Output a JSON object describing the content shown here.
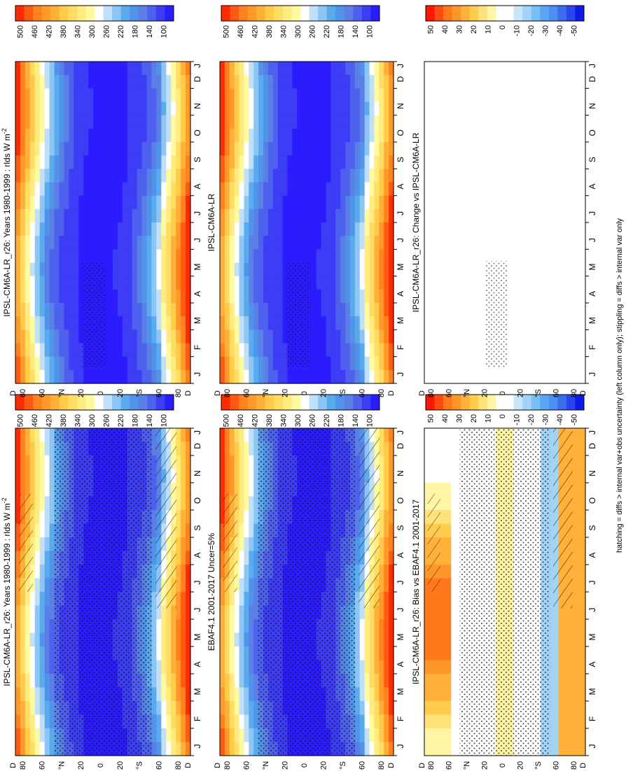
{
  "figure_caption": "hatching = diffs > internal var+obs uncertainty (left column only); stippling = diffs > internal var only",
  "palettes": {
    "abs": [
      "#2b1bff",
      "#3d3df5",
      "#4d60ee",
      "#5a80e6",
      "#4f94ea",
      "#5aaaee",
      "#8dc6f4",
      "#bfe0f8",
      "#ffffff",
      "#fffaa0",
      "#ffeb80",
      "#ffdd62",
      "#ffcb48",
      "#ffb038",
      "#ff9a2a",
      "#ff821e",
      "#ff5a14",
      "#ff2a00"
    ],
    "diff": [
      "#0e1ae6",
      "#2b46ee",
      "#3b6cf0",
      "#4a8ff2",
      "#5aa6f4",
      "#79bff6",
      "#a3d4f8",
      "#c8e6fa",
      "#ffffff",
      "#ffffff",
      "#fff5a5",
      "#ffe27a",
      "#ffcc50",
      "#ffb13a",
      "#ff962a",
      "#ff781c",
      "#ff4a10",
      "#ff1500"
    ]
  },
  "chart_data": [
    {
      "id": "top-left",
      "type": "heatmap",
      "title": "IPSL-CM6A-LR_r26: Years 1980-1999 : rlds W m",
      "title_sup": "-2",
      "palette": "abs",
      "variable": "rlds",
      "units": "W m-2",
      "months": [
        "J",
        "F",
        "M",
        "A",
        "M",
        "J",
        "J",
        "A",
        "S",
        "O",
        "N",
        "D",
        "J"
      ],
      "lat_labels": [
        "80",
        "60",
        "°N",
        "20",
        "0",
        "20",
        "°S",
        "60",
        "80"
      ],
      "lat_edge_labels": [
        "D",
        "D"
      ],
      "lat_range": [
        -90,
        90
      ],
      "colorbar_ticks": [
        "500",
        "460",
        "420",
        "380",
        "340",
        "300",
        "260",
        "220",
        "180",
        "140",
        "100"
      ],
      "colorbar_range": [
        80,
        520
      ],
      "hatching": true,
      "stippling": "dense",
      "fields": "seasonal-zonal-mean"
    },
    {
      "id": "top-right",
      "type": "heatmap",
      "title": "IPSL-CM6A-LR_r26: Years 1980-1999 : rlds W m",
      "title_sup": "-2",
      "palette": "abs",
      "months": [
        "J",
        "F",
        "M",
        "A",
        "M",
        "J",
        "J",
        "A",
        "S",
        "O",
        "N",
        "D",
        "J"
      ],
      "lat_labels": [
        "80",
        "60",
        "°N",
        "20",
        "0",
        "20",
        "°S",
        "60",
        "80"
      ],
      "lat_edge_labels": [
        "D",
        "D"
      ],
      "colorbar_ticks": [
        "500",
        "460",
        "420",
        "380",
        "340",
        "300",
        "260",
        "220",
        "180",
        "140",
        "100"
      ],
      "colorbar_range": [
        80,
        520
      ],
      "hatching": false,
      "stippling": "sparse"
    },
    {
      "id": "middle-left",
      "type": "heatmap",
      "title": "EBAF4.1 2001-2017 Uncer=5%",
      "palette": "abs",
      "months": [
        "J",
        "F",
        "M",
        "A",
        "M",
        "J",
        "J",
        "A",
        "S",
        "O",
        "N",
        "D",
        "J"
      ],
      "lat_labels": [
        "80",
        "60",
        "°N",
        "20",
        "0",
        "20",
        "°S",
        "60",
        "80"
      ],
      "lat_edge_labels": [
        "D",
        "D"
      ],
      "colorbar_ticks": [
        "500",
        "460",
        "420",
        "380",
        "340",
        "300",
        "260",
        "220",
        "180",
        "140",
        "100"
      ],
      "colorbar_range": [
        80,
        520
      ],
      "hatching": true,
      "stippling": "dense"
    },
    {
      "id": "middle-right",
      "type": "heatmap",
      "title": "IPSL-CM6A-LR",
      "palette": "abs",
      "months": [
        "J",
        "F",
        "M",
        "A",
        "M",
        "J",
        "J",
        "A",
        "S",
        "O",
        "N",
        "D",
        "J"
      ],
      "lat_labels": [
        "80",
        "60",
        "°N",
        "20",
        "0",
        "20",
        "°S",
        "60",
        "80"
      ],
      "lat_edge_labels": [
        "D",
        "D"
      ],
      "colorbar_ticks": [
        "500",
        "460",
        "420",
        "380",
        "340",
        "300",
        "260",
        "220",
        "180",
        "140",
        "100"
      ],
      "colorbar_range": [
        80,
        520
      ],
      "hatching": false,
      "stippling": "sparse"
    },
    {
      "id": "bottom-left",
      "type": "heatmap",
      "title": "IPSL-CM6A-LR_r26: Bias vs EBAF4.1 2001-2017",
      "palette": "diff",
      "months": [
        "J",
        "F",
        "M",
        "A",
        "M",
        "J",
        "J",
        "A",
        "S",
        "O",
        "N",
        "D",
        "J"
      ],
      "lat_labels": [
        "80",
        "60",
        "°N",
        "20",
        "0",
        "20",
        "°S",
        "60",
        "80"
      ],
      "lat_edge_labels": [
        "D",
        "D"
      ],
      "colorbar_ticks": [
        "50",
        "40",
        "30",
        "20",
        "10",
        "0",
        "-10",
        "-20",
        "-30",
        "-40",
        "-50"
      ],
      "colorbar_range": [
        -55,
        55
      ],
      "hatching": true,
      "stippling": "dense"
    },
    {
      "id": "bottom-right",
      "type": "heatmap",
      "title": "IPSL-CM6A-LR_r26: Change vs IPSL-CM6A-LR",
      "palette": "diff",
      "months": [
        "J",
        "F",
        "M",
        "A",
        "M",
        "J",
        "J",
        "A",
        "S",
        "O",
        "N",
        "D",
        "J"
      ],
      "lat_labels": [
        "80",
        "60",
        "°N",
        "20",
        "0",
        "20",
        "°S",
        "60",
        "80"
      ],
      "lat_edge_labels": [
        "D",
        "D"
      ],
      "colorbar_ticks": [
        "50",
        "40",
        "30",
        "20",
        "10",
        "0",
        "-10",
        "-20",
        "-30",
        "-40",
        "-50"
      ],
      "colorbar_range": [
        -55,
        55
      ],
      "hatching": false,
      "stippling": "sparse"
    }
  ]
}
